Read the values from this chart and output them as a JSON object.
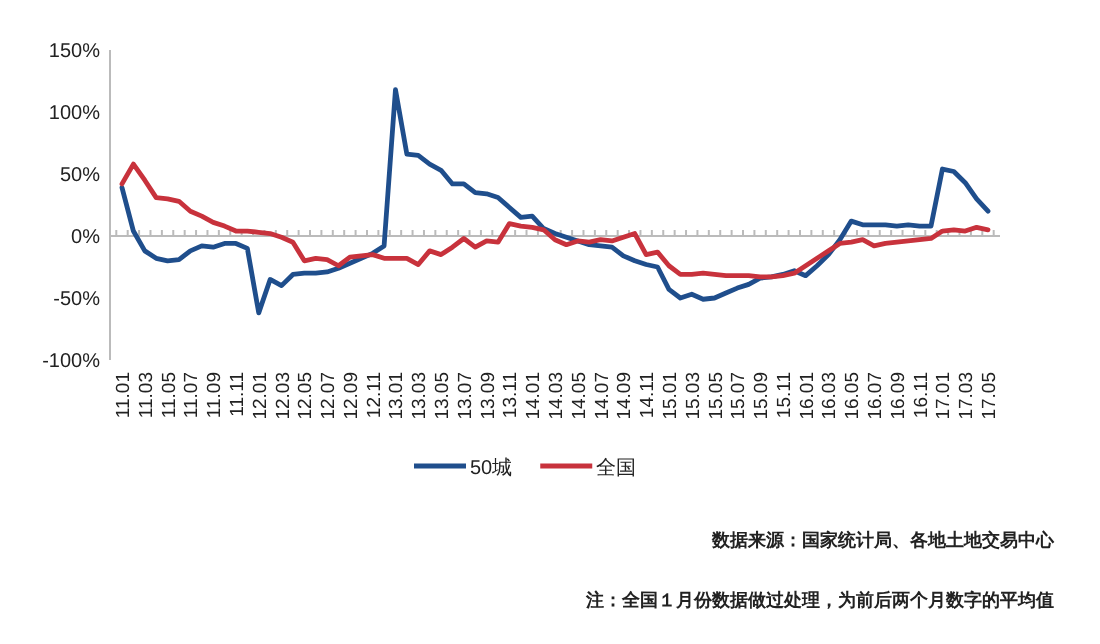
{
  "chart_data": {
    "type": "line",
    "categories": [
      "11.01",
      null,
      "11.03",
      null,
      "11.05",
      null,
      "11.07",
      null,
      "11.09",
      null,
      "11.11",
      null,
      "12.01",
      null,
      "12.03",
      null,
      "12.05",
      null,
      "12.07",
      null,
      "12.09",
      null,
      "12.11",
      null,
      "13.01",
      null,
      "13.03",
      null,
      "13.05",
      null,
      "13.07",
      null,
      "13.09",
      null,
      "13.11",
      null,
      "14.01",
      null,
      "14.03",
      null,
      "14.05",
      null,
      "14.07",
      null,
      "14.09",
      null,
      "14.11",
      null,
      "15.01",
      null,
      "15.03",
      null,
      "15.05",
      null,
      "15.07",
      null,
      "15.09",
      null,
      "15.11",
      null,
      "16.01",
      null,
      "16.03",
      null,
      "16.05",
      null,
      "16.07",
      null,
      "16.09",
      null,
      "16.11",
      null,
      "17.01",
      null,
      "17.03",
      null,
      "17.05"
    ],
    "series": [
      {
        "name": "50城",
        "color": "#1f4e8c",
        "values": [
          39,
          4,
          -12,
          -18,
          -20,
          -19,
          -12,
          -8,
          -9,
          -6,
          -6,
          -10,
          -62,
          -35,
          -40,
          -31,
          -30,
          -30,
          -29,
          -26,
          -22,
          -18,
          -14,
          -8,
          118,
          66,
          65,
          58,
          53,
          42,
          42,
          35,
          34,
          31,
          23,
          15,
          16,
          6,
          2,
          -1,
          -4,
          -7,
          -8,
          -9,
          -16,
          -20,
          -23,
          -25,
          -43,
          -50,
          -47,
          -51,
          -50,
          -46,
          -42,
          -39,
          -34,
          -33,
          -31,
          -28,
          -32,
          -24,
          -15,
          -3,
          12,
          9,
          9,
          9,
          8,
          9,
          8,
          8,
          54,
          52,
          43,
          30,
          20
        ]
      },
      {
        "name": "全国",
        "color": "#c8323c",
        "values": [
          42,
          58,
          45,
          31,
          30,
          28,
          20,
          16,
          11,
          8,
          4,
          4,
          3,
          2,
          -1,
          -5,
          -20,
          -18,
          -19,
          -24,
          -17,
          -16,
          -15,
          -18,
          -18,
          -18,
          -23,
          -12,
          -15,
          -9,
          -2,
          -9,
          -4,
          -5,
          10,
          8,
          7,
          5,
          -3,
          -7,
          -4,
          -5,
          -3,
          -4,
          -1,
          2,
          -15,
          -13,
          -24,
          -31,
          -31,
          -30,
          -31,
          -32,
          -32,
          -32,
          -33,
          -33,
          -32,
          -30,
          -24,
          -18,
          -12,
          -6,
          -5,
          -3,
          -8,
          -6,
          -5,
          -4,
          -3,
          -2,
          4,
          5,
          4,
          7,
          5
        ]
      }
    ],
    "ylim": [
      -100,
      150
    ],
    "yticks": [
      {
        "value": -100,
        "label": "-100%"
      },
      {
        "value": -50,
        "label": "-50%"
      },
      {
        "value": 0,
        "label": "0%"
      },
      {
        "value": 50,
        "label": "50%"
      },
      {
        "value": 100,
        "label": "100%"
      },
      {
        "value": 150,
        "label": "150%"
      }
    ],
    "grid": false,
    "ref_lines": [
      {
        "axis": "y",
        "value": 0,
        "color": "#bbbbbb"
      }
    ],
    "legend": "bottom",
    "marker": "none",
    "line_style": "solid",
    "annotations": [
      "数据来源：国家统计局、各地土地交易中心",
      "注：全国１月份数据做过处理，为前后两个月数字的平均值"
    ]
  }
}
